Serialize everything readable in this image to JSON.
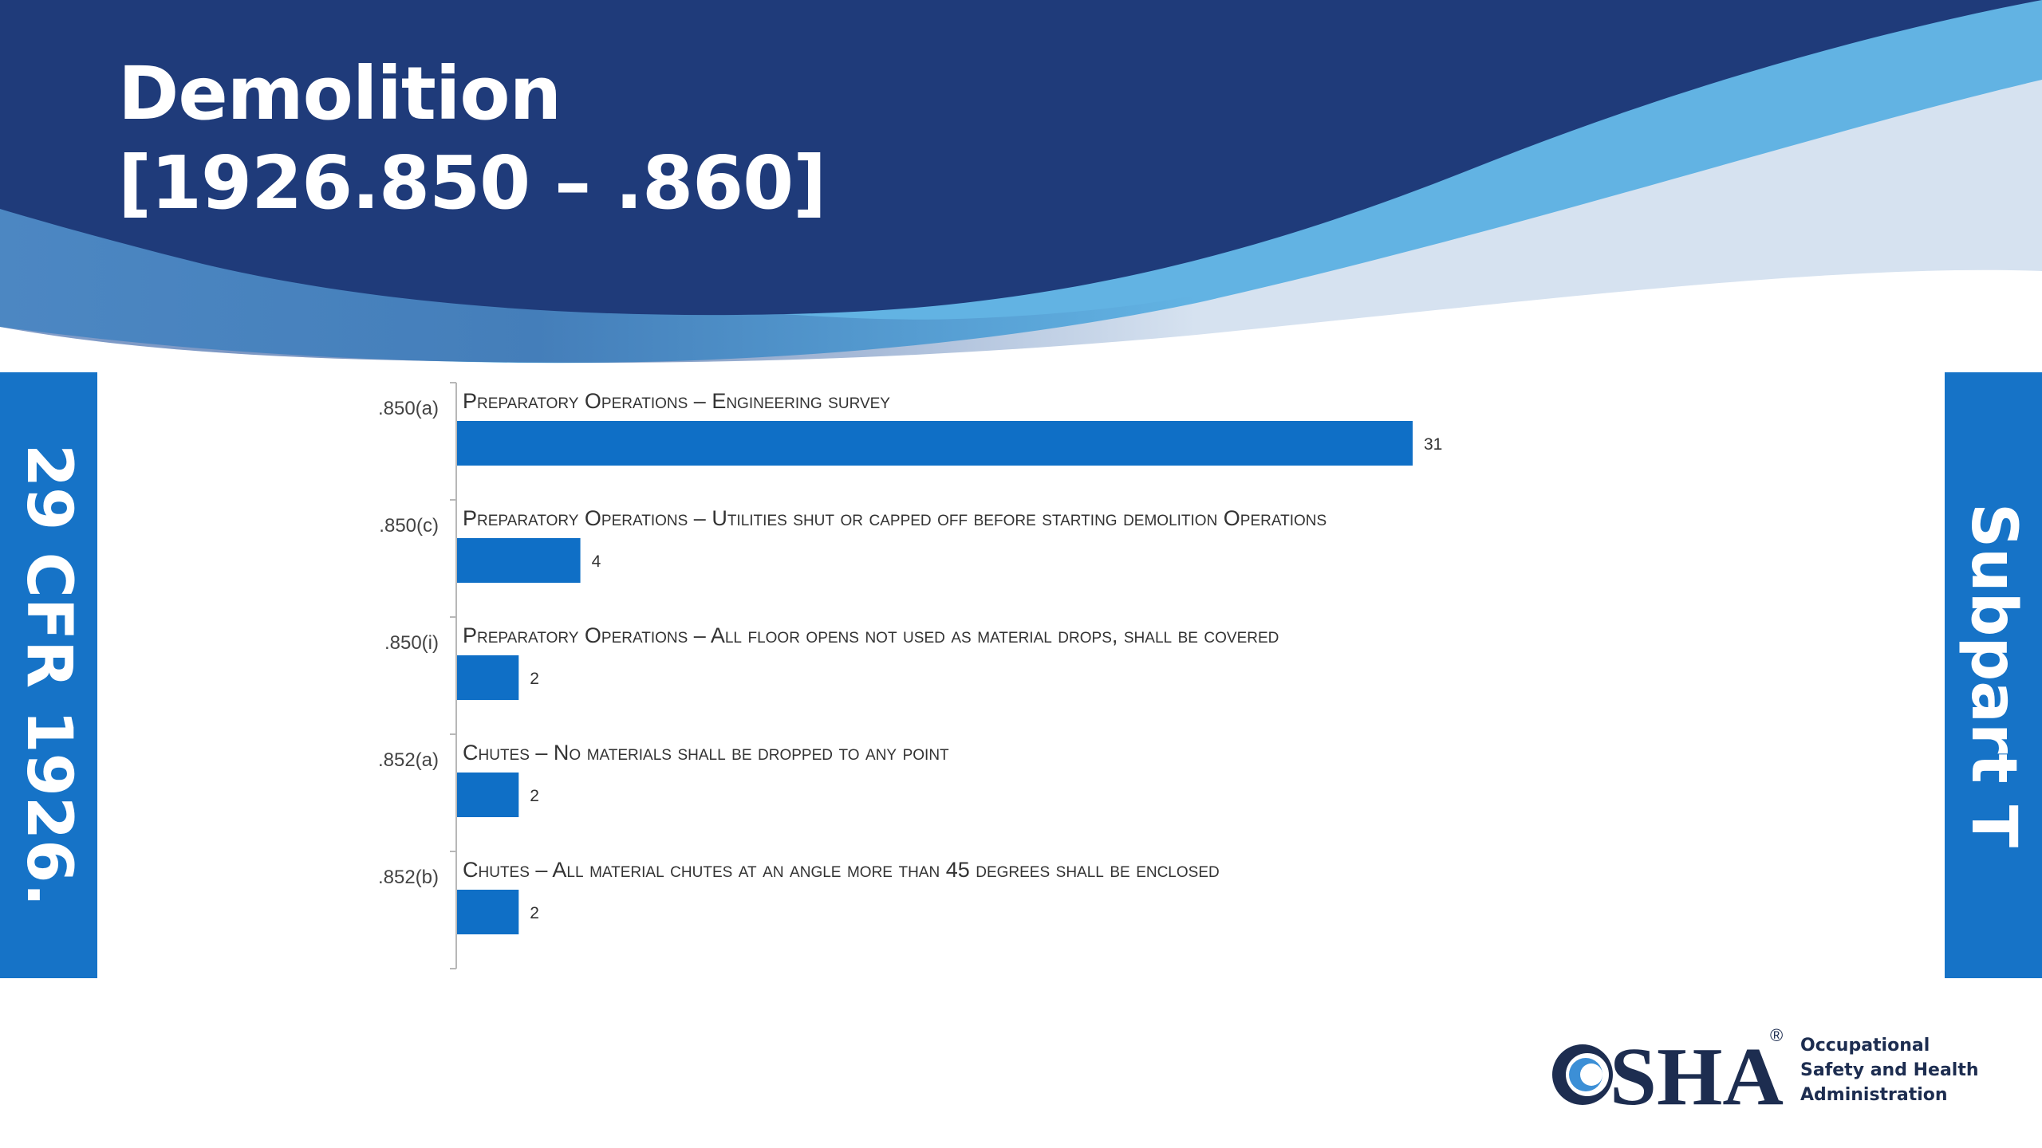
{
  "slide": {
    "title_line1": "Demolition",
    "title_line2": "[1926.850 – .860]",
    "left_tab": "29 CFR 1926.",
    "right_tab": "Subpart T"
  },
  "colors": {
    "header_dark": "#1f3b7a",
    "header_light": "#62b3e3",
    "header_pale": "#d6e2f0",
    "tab": "#1673c7",
    "bar": "#0f6fc6"
  },
  "chart_data": {
    "type": "bar",
    "orientation": "horizontal",
    "categories": [
      ".850(a)",
      ".850(c)",
      ".850(i)",
      ".852(a)",
      ".852(b)"
    ],
    "category_descriptions": [
      "Preparatory Operations – Engineering survey",
      "Preparatory Operations – Utilities shut or capped off before starting demolition Operations",
      "Preparatory Operations – All floor opens not used as material drops, shall be covered",
      "Chutes – No materials shall be dropped to any point",
      "Chutes – All material chutes at an angle more than 45 degrees shall be enclosed"
    ],
    "values": [
      31,
      4,
      2,
      2,
      2
    ],
    "data_labels": [
      "31",
      "4",
      "2",
      "2",
      "2"
    ],
    "xlim": [
      0,
      31
    ],
    "grid": false,
    "legend": "none"
  },
  "logo": {
    "text": "OSHA",
    "registered": "®",
    "tagline": [
      "Occupational",
      "Safety and Health",
      "Administration"
    ]
  }
}
